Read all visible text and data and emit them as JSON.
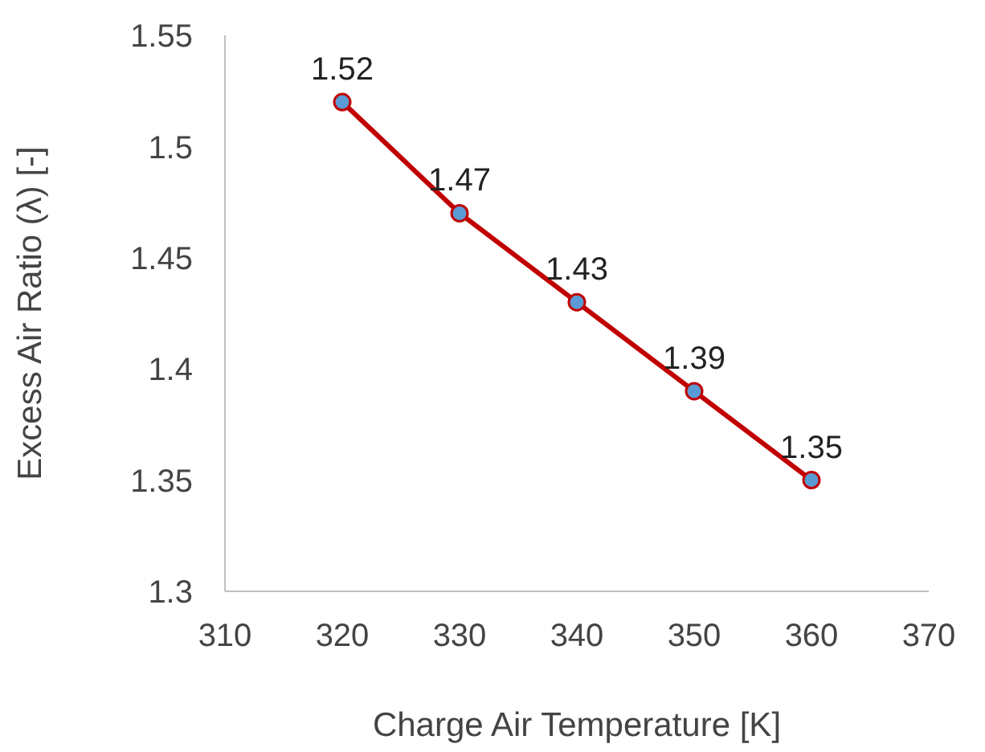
{
  "chart_data": {
    "type": "line",
    "xlabel": "Charge Air Temperature [K]",
    "ylabel": "Excess Air Ratio (λ) [-]",
    "x": [
      320,
      330,
      340,
      350,
      360
    ],
    "series": [
      {
        "color": "#c00000",
        "values": [
          1.52,
          1.47,
          1.43,
          1.39,
          1.35
        ]
      }
    ],
    "xlim": [
      310,
      370
    ],
    "xticks": [
      310,
      320,
      330,
      340,
      350,
      360,
      370
    ],
    "ylim": [
      1.3,
      1.55
    ],
    "yticks": [
      1.3,
      1.35,
      1.4,
      1.45,
      1.5,
      1.55
    ],
    "marker": "circle",
    "line_style": "solid",
    "grid": false,
    "legend": false,
    "data_labels": true
  }
}
